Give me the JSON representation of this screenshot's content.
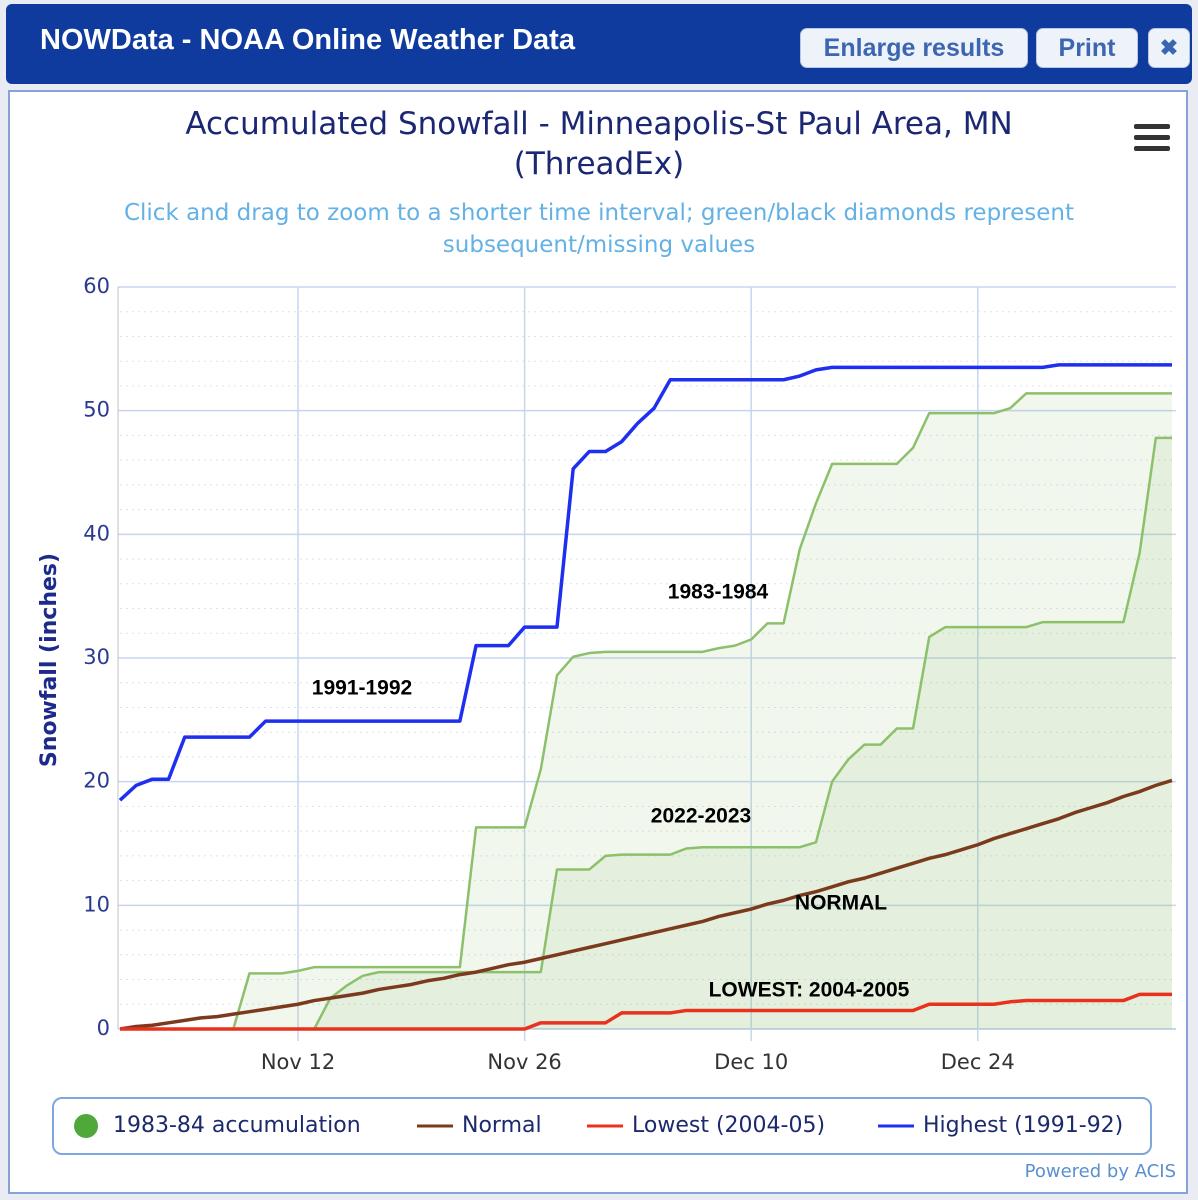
{
  "header": {
    "title": "NOWData - NOAA Online Weather Data",
    "buttons": [
      "Enlarge results",
      "Print"
    ],
    "close": "✖"
  },
  "footer": "Powered by ACIS",
  "chart_data": {
    "type": "line",
    "title": "Accumulated Snowfall - Minneapolis-St Paul Area, MN (ThreadEx)",
    "subtitle": "Click and drag to zoom to a shorter time interval; green/black diamonds represent subsequent/missing values",
    "y_label": "Snowfall (inches)",
    "categories": [
      null,
      null,
      null,
      null,
      null,
      null,
      null,
      null,
      null,
      null,
      null,
      "Nov 12",
      null,
      null,
      null,
      null,
      null,
      null,
      null,
      null,
      null,
      null,
      null,
      null,
      null,
      "Nov 26",
      null,
      null,
      null,
      null,
      null,
      null,
      null,
      null,
      null,
      null,
      null,
      null,
      null,
      "Dec 10",
      null,
      null,
      null,
      null,
      null,
      null,
      null,
      null,
      null,
      null,
      null,
      null,
      null,
      "Dec 24",
      null,
      null,
      null,
      null,
      null,
      null,
      null,
      null,
      null,
      null,
      null,
      null
    ],
    "ylim": [
      0,
      60
    ],
    "yticks": [
      0,
      10,
      20,
      30,
      40,
      50,
      60
    ],
    "grid": true,
    "series": [
      {
        "name": "1983-84 accumulation",
        "color": "#8cc06b",
        "fill": true,
        "values": [
          0,
          0,
          0,
          0,
          0,
          0,
          0,
          0,
          4.5,
          4.5,
          4.5,
          4.7,
          5.0,
          5.0,
          5.0,
          5.0,
          5.0,
          5.0,
          5.0,
          5.0,
          5.0,
          5.0,
          16.3,
          16.3,
          16.3,
          16.3,
          21.0,
          28.6,
          30.1,
          30.4,
          30.5,
          30.5,
          30.5,
          30.5,
          30.5,
          30.5,
          30.5,
          30.8,
          31.0,
          31.5,
          32.8,
          32.8,
          38.8,
          42.5,
          45.7,
          45.7,
          45.7,
          45.7,
          45.7,
          47.0,
          49.8,
          49.8,
          49.8,
          49.8,
          49.8,
          50.2,
          51.4,
          51.4,
          51.4,
          51.4,
          51.4,
          51.4,
          51.4,
          51.4,
          51.4,
          51.4
        ]
      },
      {
        "color": "#8cc06b",
        "fill": true,
        "values": [
          null,
          null,
          null,
          null,
          null,
          null,
          null,
          null,
          null,
          null,
          null,
          null,
          0,
          2.5,
          3.5,
          4.3,
          4.6,
          4.6,
          4.6,
          4.6,
          4.6,
          4.6,
          4.6,
          4.6,
          4.6,
          4.6,
          4.6,
          12.9,
          12.9,
          12.9,
          14.0,
          14.1,
          14.1,
          14.1,
          14.1,
          14.6,
          14.7,
          14.7,
          14.7,
          14.7,
          14.7,
          14.7,
          14.7,
          15.1,
          20.0,
          21.8,
          23.0,
          23.0,
          24.3,
          24.3,
          31.7,
          32.5,
          32.5,
          32.5,
          32.5,
          32.5,
          32.5,
          32.9,
          32.9,
          32.9,
          32.9,
          32.9,
          32.9,
          38.5,
          47.8,
          47.8
        ]
      },
      {
        "name": "Normal",
        "color": "#7b3a1e",
        "values": [
          0,
          0.2,
          0.3,
          0.5,
          0.7,
          0.9,
          1.0,
          1.2,
          1.4,
          1.6,
          1.8,
          2.0,
          2.3,
          2.5,
          2.7,
          2.9,
          3.2,
          3.4,
          3.6,
          3.9,
          4.1,
          4.4,
          4.6,
          4.9,
          5.2,
          5.4,
          5.7,
          6.0,
          6.3,
          6.6,
          6.9,
          7.2,
          7.5,
          7.8,
          8.1,
          8.4,
          8.7,
          9.1,
          9.4,
          9.7,
          10.1,
          10.4,
          10.8,
          11.1,
          11.5,
          11.9,
          12.2,
          12.6,
          13.0,
          13.4,
          13.8,
          14.1,
          14.5,
          14.9,
          15.4,
          15.8,
          16.2,
          16.6,
          17.0,
          17.5,
          17.9,
          18.3,
          18.8,
          19.2,
          19.7,
          20.1
        ]
      },
      {
        "name": "Lowest (2004-05)",
        "color": "#e8321e",
        "values": [
          0,
          0,
          0,
          0,
          0,
          0,
          0,
          0,
          0,
          0,
          0,
          0,
          0,
          0,
          0,
          0,
          0,
          0,
          0,
          0,
          0,
          0,
          0,
          0,
          0,
          0,
          0.5,
          0.5,
          0.5,
          0.5,
          0.5,
          1.3,
          1.3,
          1.3,
          1.3,
          1.5,
          1.5,
          1.5,
          1.5,
          1.5,
          1.5,
          1.5,
          1.5,
          1.5,
          1.5,
          1.5,
          1.5,
          1.5,
          1.5,
          1.5,
          2.0,
          2.0,
          2.0,
          2.0,
          2.0,
          2.2,
          2.3,
          2.3,
          2.3,
          2.3,
          2.3,
          2.3,
          2.3,
          2.8,
          2.8,
          2.8
        ]
      },
      {
        "name": "Highest (1991-92)",
        "color": "#1f2ff0",
        "values": [
          18.5,
          19.7,
          20.2,
          20.2,
          23.6,
          23.6,
          23.6,
          23.6,
          23.6,
          24.9,
          24.9,
          24.9,
          24.9,
          24.9,
          24.9,
          24.9,
          24.9,
          24.9,
          24.9,
          24.9,
          24.9,
          24.9,
          31.0,
          31.0,
          31.0,
          32.5,
          32.5,
          32.5,
          45.3,
          46.7,
          46.7,
          47.5,
          49.0,
          50.2,
          52.5,
          52.5,
          52.5,
          52.5,
          52.5,
          52.5,
          52.5,
          52.5,
          52.8,
          53.3,
          53.5,
          53.5,
          53.5,
          53.5,
          53.5,
          53.5,
          53.5,
          53.5,
          53.5,
          53.5,
          53.5,
          53.5,
          53.5,
          53.5,
          53.7,
          53.7,
          53.7,
          53.7,
          53.7,
          53.7,
          53.7,
          53.7
        ]
      }
    ],
    "annotations": [
      "1991-1992",
      "1983-1984",
      "2022-2023",
      "NORMAL",
      "LOWEST: 2004-2005"
    ]
  }
}
